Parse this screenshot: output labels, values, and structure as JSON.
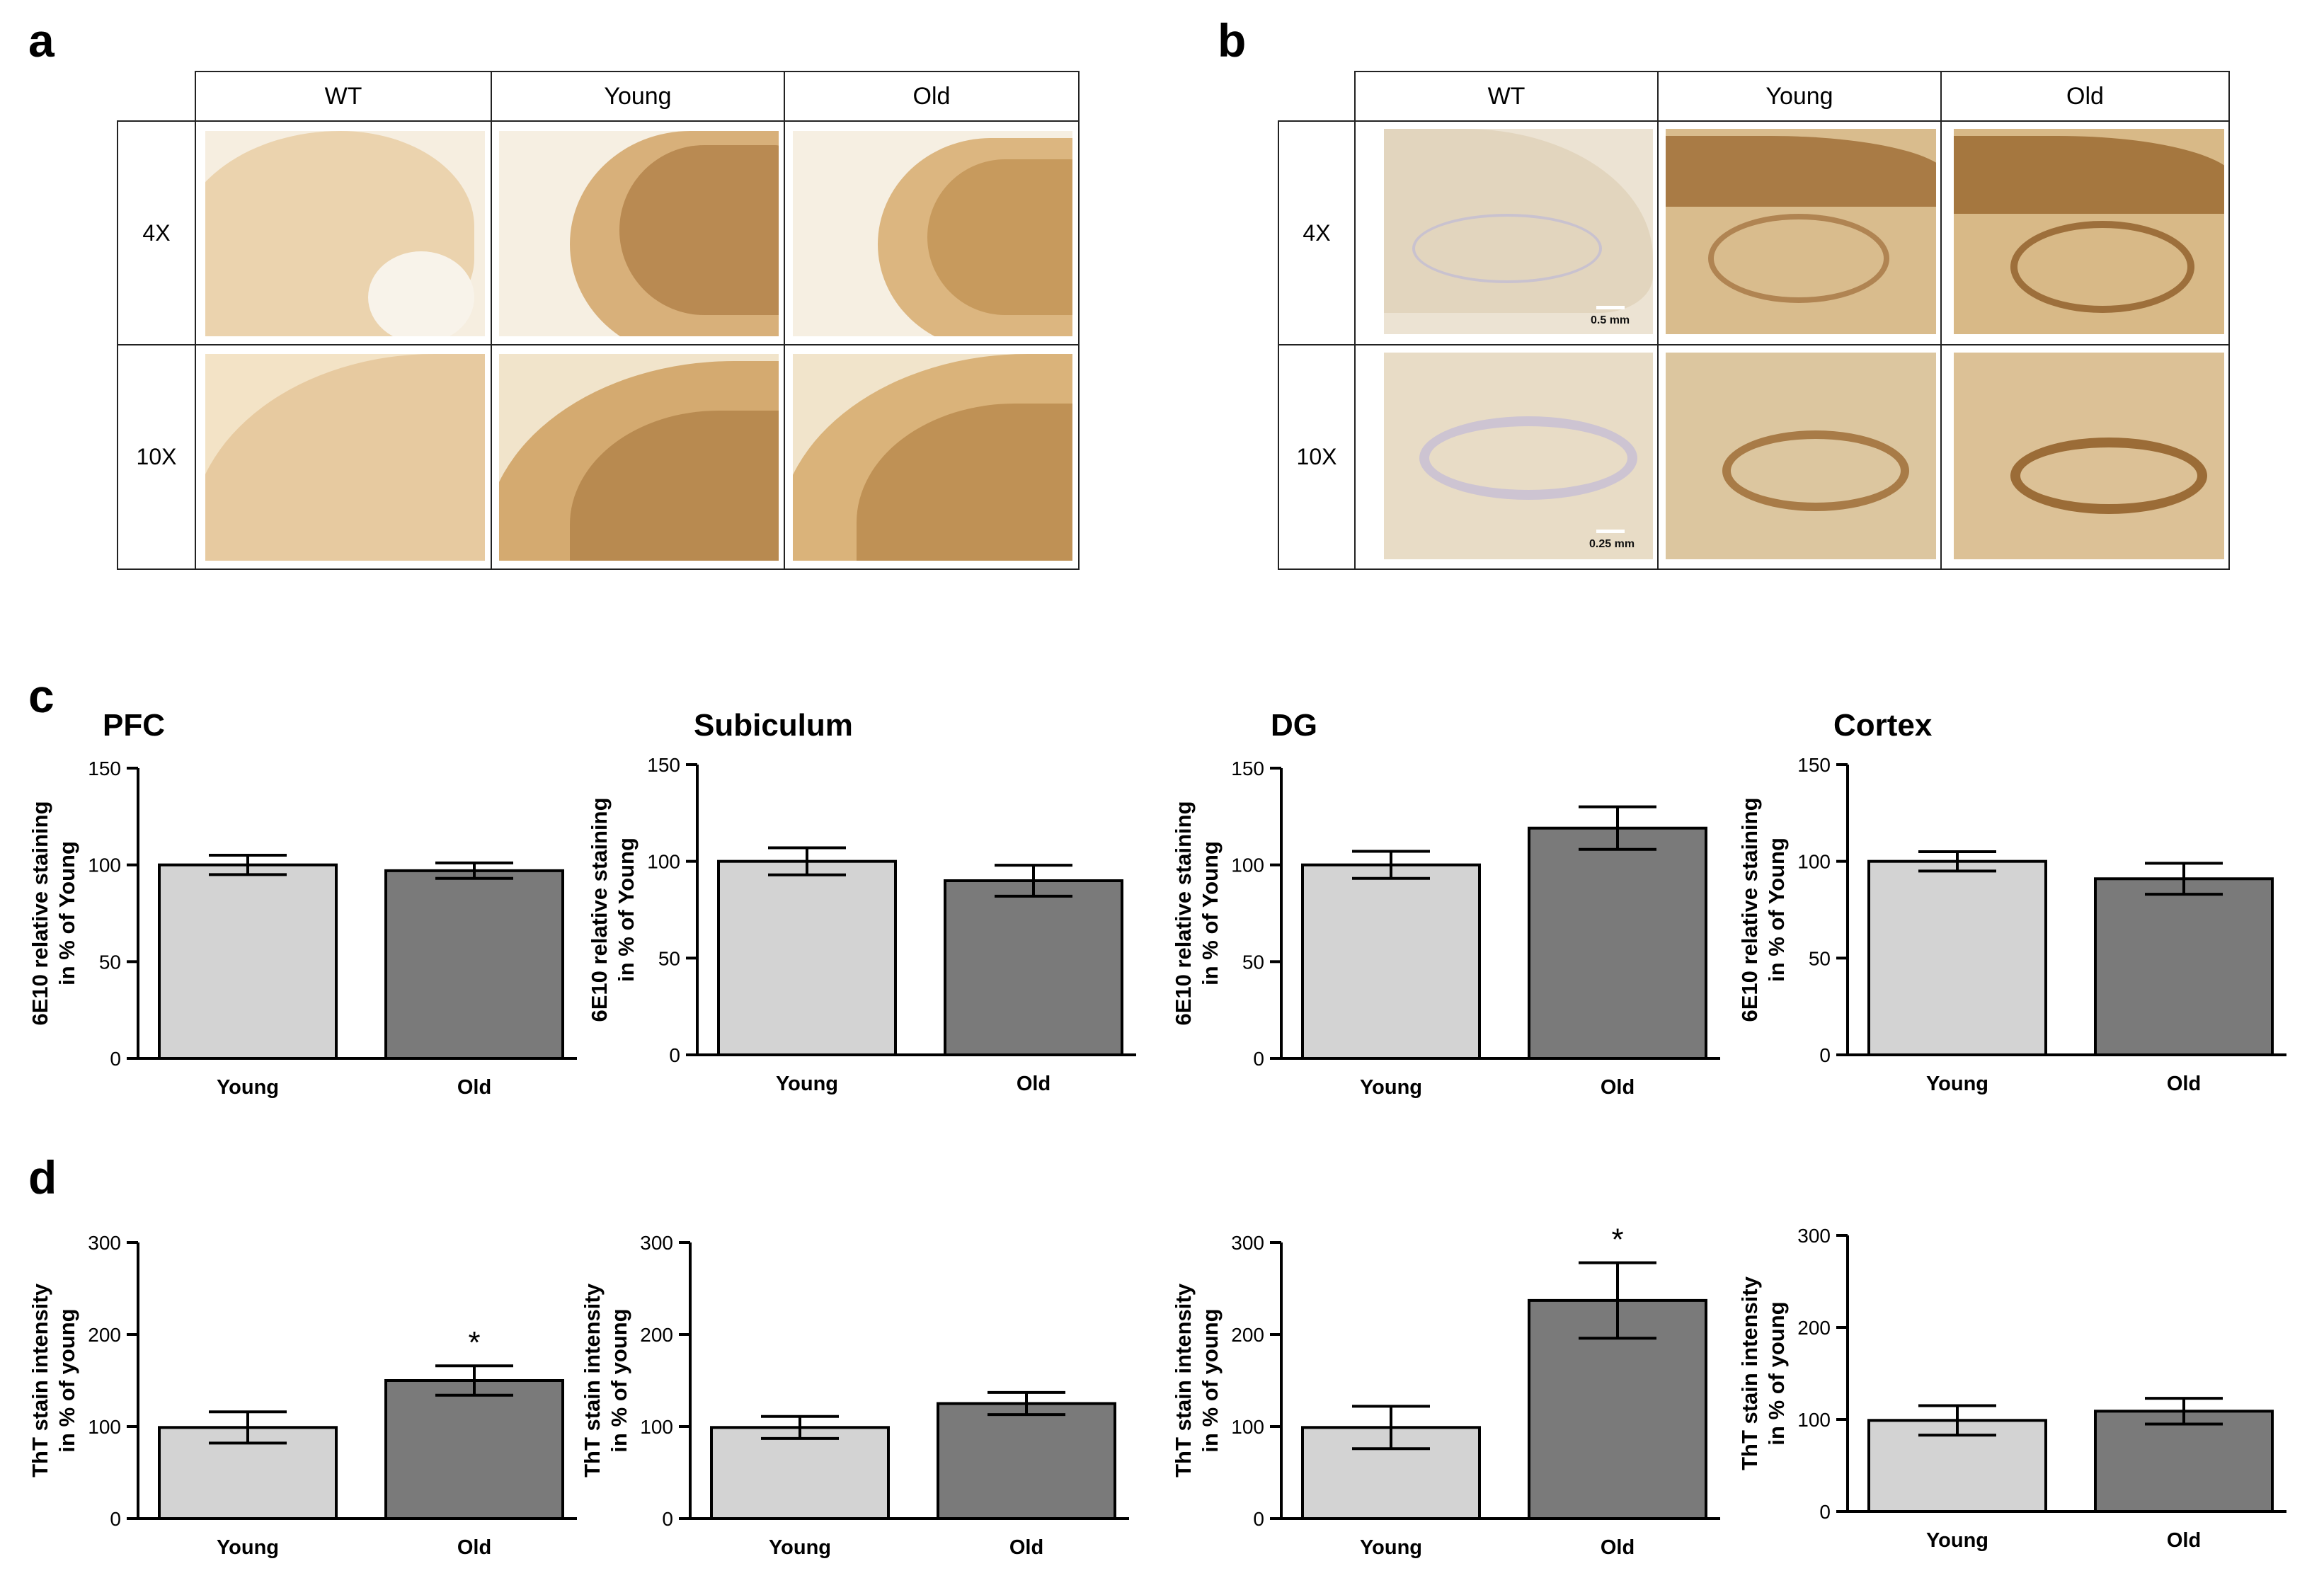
{
  "panels": {
    "a": "a",
    "b": "b",
    "c": "c",
    "d": "d"
  },
  "histology": {
    "col_headers": [
      "WT",
      "Young",
      "Old"
    ],
    "row_labels": [
      "4X",
      "10X"
    ],
    "scale_4x": "0.5 mm",
    "scale_10x": "0.25 mm",
    "colors": {
      "wt": "#e9d4b0",
      "young": "#d9b27a",
      "old": "#dcb67e",
      "dark_stain": "#9a6a34"
    }
  },
  "colors": {
    "young_bar": "#d3d3d3",
    "old_bar": "#7a7a7a"
  },
  "chart_data": [
    {
      "id": "c-pfc",
      "type": "bar",
      "title": "PFC",
      "categories": [
        "Young",
        "Old"
      ],
      "values": [
        100,
        97
      ],
      "errors": [
        5,
        4
      ],
      "ylabel": [
        "6E10 relative staining",
        "in % of Young"
      ],
      "ylim": [
        0,
        150
      ],
      "yticks": [
        0,
        50,
        100,
        150
      ],
      "significance": [
        "",
        ""
      ]
    },
    {
      "id": "c-subiculum",
      "type": "bar",
      "title": "Subiculum",
      "categories": [
        "Young",
        "Old"
      ],
      "values": [
        100,
        90
      ],
      "errors": [
        7,
        8
      ],
      "ylabel": [
        "6E10 relative staining",
        "in % of Young"
      ],
      "ylim": [
        0,
        150
      ],
      "yticks": [
        0,
        50,
        100,
        150
      ],
      "significance": [
        "",
        ""
      ]
    },
    {
      "id": "c-dg",
      "type": "bar",
      "title": "DG",
      "categories": [
        "Young",
        "Old"
      ],
      "values": [
        100,
        119
      ],
      "errors": [
        7,
        11
      ],
      "ylabel": [
        "6E10 relative staining",
        "in % of Young"
      ],
      "ylim": [
        0,
        150
      ],
      "yticks": [
        0,
        50,
        100,
        150
      ],
      "significance": [
        "",
        ""
      ]
    },
    {
      "id": "c-cortex",
      "type": "bar",
      "title": "Cortex",
      "categories": [
        "Young",
        "Old"
      ],
      "values": [
        100,
        91
      ],
      "errors": [
        5,
        8
      ],
      "ylabel": [
        "6E10 relative staining",
        "in % of Young"
      ],
      "ylim": [
        0,
        150
      ],
      "yticks": [
        0,
        50,
        100,
        150
      ],
      "significance": [
        "",
        ""
      ]
    },
    {
      "id": "d-pfc",
      "type": "bar",
      "title": "",
      "categories": [
        "Young",
        "Old"
      ],
      "values": [
        99,
        150
      ],
      "errors": [
        17,
        16
      ],
      "ylabel": [
        "ThT stain intensity",
        "in % of young"
      ],
      "ylim": [
        0,
        300
      ],
      "yticks": [
        0,
        100,
        200,
        300
      ],
      "significance": [
        "",
        "*"
      ]
    },
    {
      "id": "d-subiculum",
      "type": "bar",
      "title": "",
      "categories": [
        "Young",
        "Old"
      ],
      "values": [
        99,
        125
      ],
      "errors": [
        12,
        12
      ],
      "ylabel": [
        "ThT stain intensity",
        "in % of young"
      ],
      "ylim": [
        0,
        300
      ],
      "yticks": [
        0,
        100,
        200,
        300
      ],
      "significance": [
        "",
        ""
      ]
    },
    {
      "id": "d-dg",
      "type": "bar",
      "title": "",
      "categories": [
        "Young",
        "Old"
      ],
      "values": [
        99,
        237
      ],
      "errors": [
        23,
        41
      ],
      "ylabel": [
        "ThT stain intensity",
        "in % of young"
      ],
      "ylim": [
        0,
        300
      ],
      "yticks": [
        0,
        100,
        200,
        300
      ],
      "significance": [
        "",
        "*"
      ]
    },
    {
      "id": "d-cortex",
      "type": "bar",
      "title": "",
      "categories": [
        "Young",
        "Old"
      ],
      "values": [
        99,
        109
      ],
      "errors": [
        16,
        14
      ],
      "ylabel": [
        "ThT stain intensity",
        "in % of young"
      ],
      "ylim": [
        0,
        300
      ],
      "yticks": [
        0,
        100,
        200,
        300
      ],
      "significance": [
        "",
        ""
      ]
    }
  ]
}
